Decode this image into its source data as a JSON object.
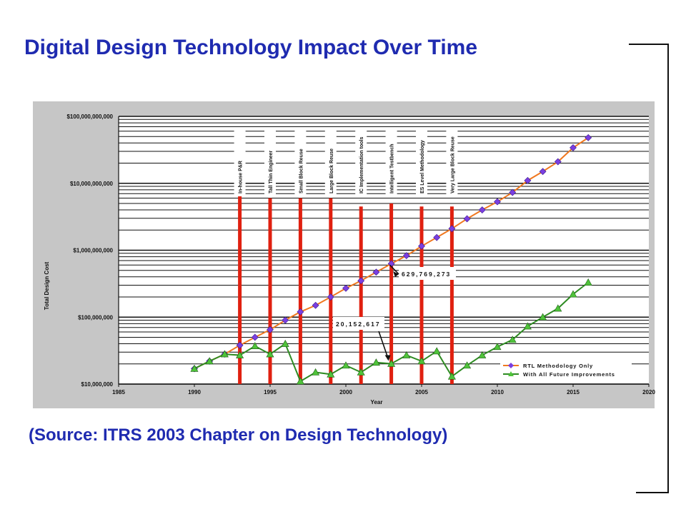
{
  "slide": {
    "title": "Digital Design Technology Impact Over Time",
    "source": "(Source: ITRS 2003 Chapter on Design Technology)"
  },
  "colors": {
    "title_text": "#1f2bb0",
    "rtl_line": "#f07820",
    "rtl_marker": "#7b3fe0",
    "future_line": "#2e8b22",
    "future_marker": "#4fc33a",
    "milestone_bar": "#e02010"
  },
  "chart_data": {
    "type": "line",
    "title": "",
    "xlabel": "Year",
    "ylabel": "Total Design Cost",
    "y_scale": "log",
    "xlim": [
      1985,
      2020
    ],
    "ylim": [
      10000000,
      100000000000
    ],
    "x_ticks": [
      1985,
      1990,
      1995,
      2000,
      2005,
      2010,
      2015,
      2020
    ],
    "x_tick_labels": [
      "1985",
      "1990",
      "1995",
      "2000",
      "2005",
      "2010",
      "2015",
      "2020"
    ],
    "y_ticks": [
      10000000,
      100000000,
      1000000000,
      10000000000,
      100000000000
    ],
    "y_tick_labels": [
      "$10,000,000",
      "$100,000,000",
      "$1,000,000,000",
      "$10,000,000,000",
      "$100,000,000,000"
    ],
    "grid": true,
    "legend": "bottom-right",
    "series": [
      {
        "name": "RTL Methodology Only",
        "marker": "diamond",
        "points": [
          [
            1990,
            17000000
          ],
          [
            1991,
            22000000
          ],
          [
            1992,
            28000000
          ],
          [
            1993,
            38000000
          ],
          [
            1994,
            50000000
          ],
          [
            1995,
            65000000
          ],
          [
            1996,
            90000000
          ],
          [
            1997,
            120000000
          ],
          [
            1998,
            150000000
          ],
          [
            1999,
            200000000
          ],
          [
            2000,
            270000000
          ],
          [
            2001,
            350000000
          ],
          [
            2002,
            470000000
          ],
          [
            2003,
            629769273
          ],
          [
            2004,
            830000000
          ],
          [
            2005,
            1150000000
          ],
          [
            2006,
            1550000000
          ],
          [
            2007,
            2100000000
          ],
          [
            2008,
            2950000000
          ],
          [
            2009,
            4000000000
          ],
          [
            2010,
            5300000000
          ],
          [
            2011,
            7300000000
          ],
          [
            2012,
            11000000000
          ],
          [
            2013,
            15000000000
          ],
          [
            2014,
            21000000000
          ],
          [
            2015,
            34000000000
          ],
          [
            2016,
            48000000000
          ]
        ]
      },
      {
        "name": "With All Future Improvements",
        "marker": "triangle",
        "points": [
          [
            1990,
            17000000
          ],
          [
            1991,
            22000000
          ],
          [
            1992,
            28000000
          ],
          [
            1993,
            27000000
          ],
          [
            1994,
            37000000
          ],
          [
            1995,
            28000000
          ],
          [
            1996,
            40000000
          ],
          [
            1997,
            11000000
          ],
          [
            1998,
            15000000
          ],
          [
            1999,
            14000000
          ],
          [
            2000,
            19000000
          ],
          [
            2001,
            15000000
          ],
          [
            2002,
            21000000
          ],
          [
            2003,
            20152617
          ],
          [
            2004,
            27000000
          ],
          [
            2005,
            22000000
          ],
          [
            2006,
            31000000
          ],
          [
            2007,
            13000000
          ],
          [
            2008,
            19000000
          ],
          [
            2009,
            27000000
          ],
          [
            2010,
            36000000
          ],
          [
            2011,
            46000000
          ],
          [
            2012,
            73000000
          ],
          [
            2013,
            100000000
          ],
          [
            2014,
            135000000
          ],
          [
            2015,
            220000000
          ],
          [
            2016,
            330000000
          ]
        ]
      }
    ],
    "milestones": [
      {
        "label": "In-house P&R",
        "year": 1993,
        "top": 10000000000
      },
      {
        "label": "Tall Thin Engineer",
        "year": 1995,
        "top": 6000000000
      },
      {
        "label": "Small Block Reuse",
        "year": 1997,
        "top": 6000000000
      },
      {
        "label": "Large Block Reuse",
        "year": 1999,
        "top": 6000000000
      },
      {
        "label": "IC Implementation tools",
        "year": 2001,
        "top": 4500000000
      },
      {
        "label": "Intelligent Testbench",
        "year": 2003,
        "top": 5000000000
      },
      {
        "label": "ES Level Methodology",
        "year": 2005,
        "top": 4500000000
      },
      {
        "label": "Very Large Block Reuse",
        "year": 2007,
        "top": 4500000000
      }
    ],
    "annotations": [
      {
        "text": "629,769,273",
        "x": 2003,
        "y": 629769273
      },
      {
        "text": "20,152,617",
        "x": 2003,
        "y": 20152617
      }
    ]
  }
}
